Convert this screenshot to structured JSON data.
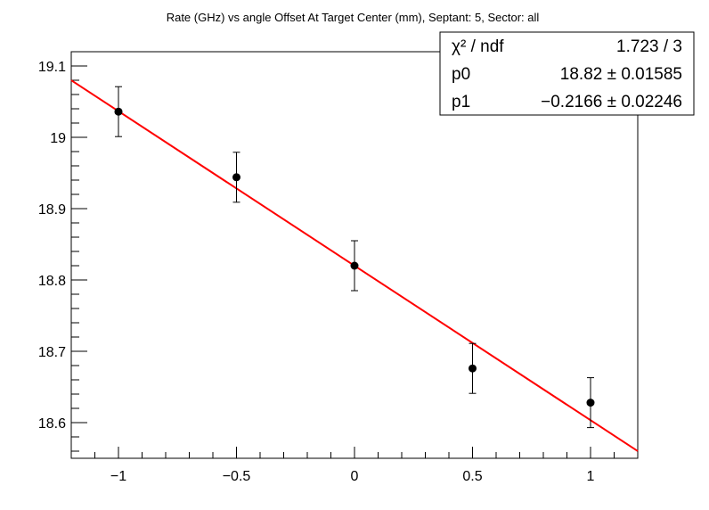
{
  "chart_data": {
    "type": "scatter",
    "title": "Rate (GHz) vs angle Offset At Target Center (mm), Septant: 5, Sector: all",
    "xlabel": "",
    "ylabel": "",
    "xlim": [
      -1.2,
      1.2
    ],
    "ylim": [
      18.55,
      19.12
    ],
    "x_ticks": [
      -1,
      -0.5,
      0,
      0.5,
      1
    ],
    "x_tick_labels": [
      "−1",
      "−0.5",
      "0",
      "0.5",
      "1"
    ],
    "y_ticks": [
      18.6,
      18.7,
      18.8,
      18.9,
      19.0,
      19.1
    ],
    "y_tick_labels": [
      "18.6",
      "18.7",
      "18.8",
      "18.9",
      "19",
      "19.1"
    ],
    "grid": false,
    "series": [
      {
        "x": [
          -1,
          -0.5,
          0,
          0.5,
          1
        ],
        "y": [
          19.036,
          18.944,
          18.82,
          18.676,
          18.628
        ],
        "yerr": [
          0.035,
          0.035,
          0.035,
          0.035,
          0.035
        ],
        "color": "#000000"
      }
    ],
    "fit": {
      "type": "linear",
      "p0": 18.82,
      "p1": -0.2166,
      "color": "#ff0000"
    },
    "stats_box": {
      "position": "top-right",
      "rows": [
        {
          "label": "χ² / ndf",
          "value": "1.723 / 3"
        },
        {
          "label": "p0",
          "value": "18.82 ± 0.01585"
        },
        {
          "label": "p1",
          "value": "−0.2166 ± 0.02246"
        }
      ]
    }
  }
}
